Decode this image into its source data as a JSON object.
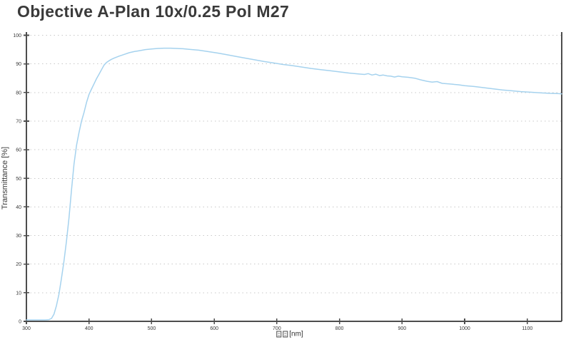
{
  "title": "Objective A-Plan 10x/0.25 Pol M27",
  "colors": {
    "background": "#ffffff",
    "curve": "#a5d2ee",
    "axis": "#4d4d4d",
    "grid": "#c8c8c8",
    "title_text": "#3a3a3a",
    "tick_text": "#3a3a3a"
  },
  "chart_data": {
    "type": "line",
    "title": "Objective A-Plan 10x/0.25 Pol M27",
    "xlabel": "[nm]",
    "xlabel_missing_glyph_boxes": 2,
    "ylabel": "Transmittance [%]",
    "xlim": [
      300,
      1155
    ],
    "ylim": [
      0,
      100
    ],
    "xticks": [
      300,
      400,
      500,
      600,
      700,
      800,
      900,
      1000,
      1100
    ],
    "yticks": [
      0,
      10,
      20,
      30,
      40,
      50,
      60,
      70,
      80,
      90,
      100
    ],
    "grid": "horizontal-dotted",
    "legend": "none",
    "series": [
      {
        "name": "Transmittance",
        "points": [
          [
            300,
            0.5
          ],
          [
            310,
            0.5
          ],
          [
            320,
            0.5
          ],
          [
            330,
            0.5
          ],
          [
            336,
            0.6
          ],
          [
            340,
            1.0
          ],
          [
            344,
            2.5
          ],
          [
            348,
            5.5
          ],
          [
            352,
            9.5
          ],
          [
            356,
            15.0
          ],
          [
            360,
            21.0
          ],
          [
            364,
            28.0
          ],
          [
            368,
            36.0
          ],
          [
            372,
            46.0
          ],
          [
            376,
            55.0
          ],
          [
            380,
            61.5
          ],
          [
            384,
            66.0
          ],
          [
            388,
            70.0
          ],
          [
            392,
            73.0
          ],
          [
            396,
            76.5
          ],
          [
            400,
            79.3
          ],
          [
            404,
            81.2
          ],
          [
            408,
            83.0
          ],
          [
            412,
            84.8
          ],
          [
            416,
            86.4
          ],
          [
            420,
            88.0
          ],
          [
            424,
            89.6
          ],
          [
            428,
            90.5
          ],
          [
            432,
            91.1
          ],
          [
            436,
            91.6
          ],
          [
            440,
            92.0
          ],
          [
            448,
            92.7
          ],
          [
            456,
            93.3
          ],
          [
            464,
            93.9
          ],
          [
            472,
            94.3
          ],
          [
            480,
            94.6
          ],
          [
            490,
            95.0
          ],
          [
            500,
            95.2
          ],
          [
            510,
            95.4
          ],
          [
            520,
            95.5
          ],
          [
            530,
            95.5
          ],
          [
            540,
            95.4
          ],
          [
            550,
            95.3
          ],
          [
            560,
            95.1
          ],
          [
            575,
            94.8
          ],
          [
            590,
            94.3
          ],
          [
            605,
            93.8
          ],
          [
            620,
            93.2
          ],
          [
            635,
            92.6
          ],
          [
            650,
            92.0
          ],
          [
            665,
            91.4
          ],
          [
            680,
            90.8
          ],
          [
            695,
            90.3
          ],
          [
            710,
            89.8
          ],
          [
            725,
            89.4
          ],
          [
            740,
            88.9
          ],
          [
            755,
            88.4
          ],
          [
            770,
            88.0
          ],
          [
            785,
            87.6
          ],
          [
            800,
            87.2
          ],
          [
            815,
            86.8
          ],
          [
            830,
            86.5
          ],
          [
            840,
            86.3
          ],
          [
            846,
            86.6
          ],
          [
            852,
            86.1
          ],
          [
            858,
            86.4
          ],
          [
            864,
            85.9
          ],
          [
            870,
            86.1
          ],
          [
            876,
            85.8
          ],
          [
            882,
            85.7
          ],
          [
            888,
            85.4
          ],
          [
            894,
            85.7
          ],
          [
            900,
            85.5
          ],
          [
            910,
            85.3
          ],
          [
            920,
            85.0
          ],
          [
            930,
            84.4
          ],
          [
            940,
            83.9
          ],
          [
            948,
            83.6
          ],
          [
            956,
            83.8
          ],
          [
            964,
            83.2
          ],
          [
            975,
            83.0
          ],
          [
            990,
            82.7
          ],
          [
            1000,
            82.4
          ],
          [
            1015,
            82.1
          ],
          [
            1030,
            81.7
          ],
          [
            1045,
            81.3
          ],
          [
            1060,
            80.9
          ],
          [
            1075,
            80.6
          ],
          [
            1090,
            80.3
          ],
          [
            1105,
            80.1
          ],
          [
            1120,
            79.9
          ],
          [
            1135,
            79.7
          ],
          [
            1150,
            79.6
          ],
          [
            1155,
            79.5
          ]
        ]
      }
    ]
  }
}
